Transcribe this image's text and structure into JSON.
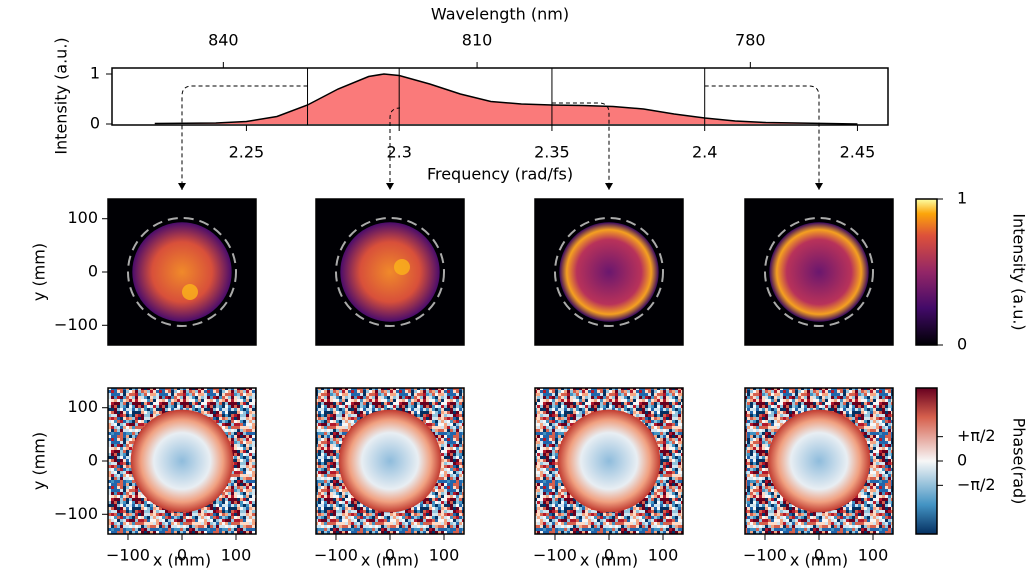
{
  "chart_data": [
    {
      "type": "area",
      "xlabel": "Frequency (rad/fs)",
      "x2label": "Wavelength (nm)",
      "ylabel": "Intensity (a.u.)",
      "x": [
        2.22,
        2.24,
        2.25,
        2.26,
        2.27,
        2.28,
        2.29,
        2.295,
        2.3,
        2.31,
        2.32,
        2.33,
        2.34,
        2.35,
        2.36,
        2.37,
        2.38,
        2.39,
        2.4,
        2.41,
        2.42,
        2.44,
        2.45
      ],
      "values": [
        0.01,
        0.02,
        0.05,
        0.15,
        0.38,
        0.7,
        0.95,
        1.0,
        0.97,
        0.8,
        0.6,
        0.45,
        0.4,
        0.38,
        0.37,
        0.35,
        0.3,
        0.2,
        0.12,
        0.06,
        0.03,
        0.01,
        0.0
      ],
      "color": "#fa7a7a",
      "xlim": [
        2.206,
        2.46
      ],
      "ylim": [
        -0.02,
        1.12
      ],
      "xticks": [
        2.25,
        2.3,
        2.35,
        2.4,
        2.45
      ],
      "yticks": [
        0,
        1
      ],
      "x2ticks": [
        840,
        810,
        780
      ],
      "markers": [
        2.27,
        2.3,
        2.35,
        2.4
      ]
    },
    {
      "type": "heatmap",
      "xlabel": "x (mm)",
      "ylabel": "y (mm)",
      "xlim": [
        -137,
        137
      ],
      "ylim": [
        -137,
        137
      ],
      "xticks": [
        {
          "value": -100,
          "label": "−100"
        },
        0,
        100
      ],
      "yticks": [
        {
          "value": -100,
          "label": "−100"
        },
        0,
        100
      ],
      "beam_radius": 100,
      "colorbars": [
        {
          "label": "Intensity (a.u.)",
          "lim": [
            0,
            1
          ],
          "ticks": [
            0,
            1
          ]
        },
        {
          "label": "Phase(rad)",
          "lim": [
            -4.712,
            4.712
          ],
          "ticks": [
            {
              "value": -1.571,
              "label": "−π/2"
            },
            0,
            {
              "value": 1.571,
              "label": "+π/2"
            }
          ]
        }
      ]
    }
  ]
}
